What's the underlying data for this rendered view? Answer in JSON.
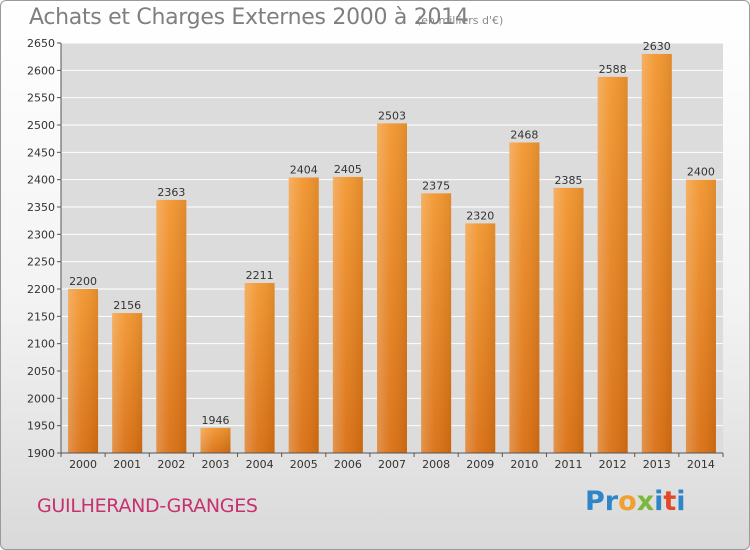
{
  "header": {
    "title": "Achats et Charges Externes 2000 à 2014",
    "subtitle": "(en milliers d'€)"
  },
  "footer": {
    "city": "GUILHERAND-GRANGES",
    "brand": "Proxiti",
    "brand_letters": [
      {
        "ch": "P",
        "color": "#2e86c9"
      },
      {
        "ch": "r",
        "color": "#2e86c9"
      },
      {
        "ch": "o",
        "color": "#f0a030"
      },
      {
        "ch": "x",
        "color": "#7bb83a"
      },
      {
        "ch": "i",
        "color": "#2e86c9"
      },
      {
        "ch": "t",
        "color": "#e04a2a"
      },
      {
        "ch": "i",
        "color": "#2e86c9"
      }
    ]
  },
  "chart_data": {
    "type": "bar",
    "title": "Achats et Charges Externes 2000 à 2014",
    "subtitle": "(en milliers d'€)",
    "xlabel": "",
    "ylabel": "",
    "categories": [
      "2000",
      "2001",
      "2002",
      "2003",
      "2004",
      "2005",
      "2006",
      "2007",
      "2008",
      "2009",
      "2010",
      "2011",
      "2012",
      "2013",
      "2014"
    ],
    "values": [
      2200,
      2156,
      2363,
      1946,
      2211,
      2404,
      2405,
      2503,
      2375,
      2320,
      2468,
      2385,
      2588,
      2630,
      2400
    ],
    "ylim": [
      1900,
      2650
    ],
    "yticks": [
      1900,
      1950,
      2000,
      2050,
      2100,
      2150,
      2200,
      2250,
      2300,
      2350,
      2400,
      2450,
      2500,
      2550,
      2600,
      2650
    ],
    "grid": true,
    "bar_color": "#f2962f",
    "bar_color_dark": "#d96f12"
  }
}
